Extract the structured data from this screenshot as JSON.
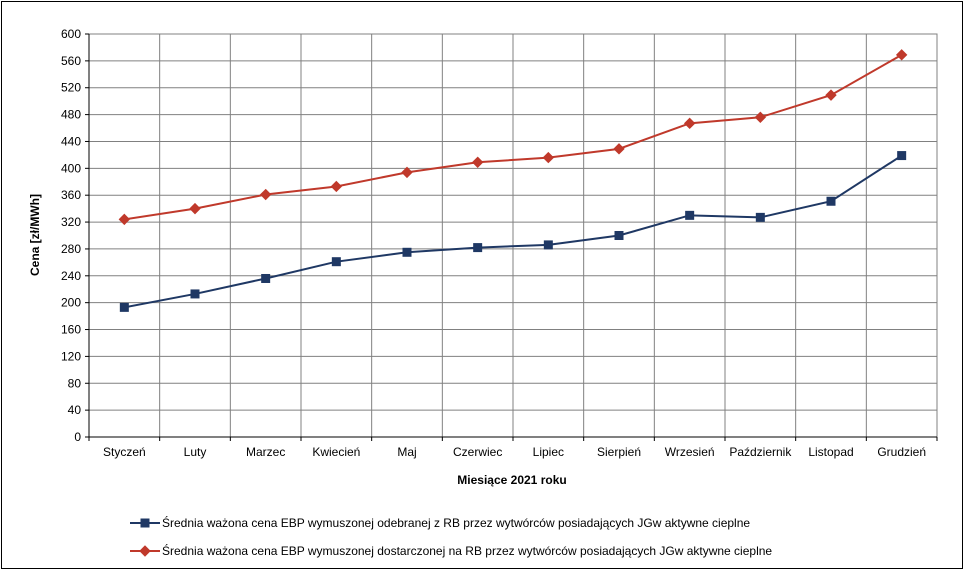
{
  "chart_data": {
    "type": "line",
    "xlabel": "Miesiące 2021  roku",
    "ylabel": "Cena [zł/MWh]",
    "ylim": [
      0,
      600
    ],
    "ytick_step": 40,
    "grid": true,
    "legend_position": "bottom",
    "categories": [
      "Styczeń",
      "Luty",
      "Marzec",
      "Kwiecień",
      "Maj",
      "Czerwiec",
      "Lipiec",
      "Sierpień",
      "Wrzesień",
      "Październik",
      "Listopad",
      "Grudzień"
    ],
    "series": [
      {
        "name": "Średnia ważona cena EBP wymuszonej odebranej z RB przez wytwórców posiadających JGw aktywne cieplne",
        "color": "#1f3864",
        "marker": "square",
        "values": [
          193,
          213,
          236,
          261,
          275,
          282,
          286,
          300,
          330,
          327,
          351,
          419
        ]
      },
      {
        "name": "Średnia ważona cena EBP wymuszonej dostarczonej na RB przez wytwórców posiadających JGw aktywne cieplne",
        "color": "#c0392b",
        "marker": "diamond",
        "values": [
          324,
          340,
          361,
          373,
          394,
          409,
          416,
          429,
          467,
          476,
          509,
          569
        ]
      }
    ]
  }
}
